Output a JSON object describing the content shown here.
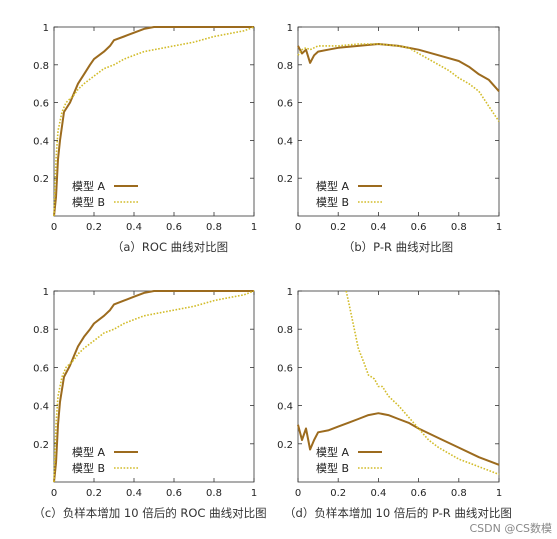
{
  "colors": {
    "model_a": "#9c6b1e",
    "model_b": "#d2bc2a",
    "axis": "#333333"
  },
  "chart_data": [
    {
      "type": "line",
      "caption": "（a）ROC 曲线对比图",
      "xlim": [
        0,
        1
      ],
      "ylim": [
        0,
        1
      ],
      "xticks": [
        "0",
        "0.2",
        "0.4",
        "0.6",
        "0.8",
        "1"
      ],
      "yticks": [
        "0.2",
        "0.4",
        "0.6",
        "0.8",
        "1"
      ],
      "legend": "bottom-left",
      "series": [
        {
          "name": "模型 A",
          "style": "solid",
          "x": [
            0.0,
            0.01,
            0.02,
            0.03,
            0.05,
            0.08,
            0.1,
            0.12,
            0.15,
            0.18,
            0.2,
            0.25,
            0.28,
            0.3,
            0.35,
            0.4,
            0.45,
            0.5,
            0.6,
            0.7,
            0.8,
            0.9,
            1.0
          ],
          "y": [
            0.0,
            0.1,
            0.3,
            0.4,
            0.55,
            0.6,
            0.65,
            0.7,
            0.75,
            0.8,
            0.83,
            0.87,
            0.9,
            0.93,
            0.95,
            0.97,
            0.99,
            1.0,
            1.0,
            1.0,
            1.0,
            1.0,
            1.0
          ]
        },
        {
          "name": "模型 B",
          "style": "dotted",
          "x": [
            0.0,
            0.01,
            0.02,
            0.04,
            0.06,
            0.1,
            0.12,
            0.15,
            0.2,
            0.25,
            0.3,
            0.35,
            0.4,
            0.45,
            0.5,
            0.6,
            0.7,
            0.8,
            0.85,
            0.9,
            0.95,
            1.0
          ],
          "y": [
            0.0,
            0.3,
            0.45,
            0.55,
            0.6,
            0.64,
            0.67,
            0.7,
            0.74,
            0.78,
            0.8,
            0.83,
            0.85,
            0.87,
            0.88,
            0.9,
            0.92,
            0.95,
            0.96,
            0.97,
            0.98,
            1.0
          ]
        }
      ]
    },
    {
      "type": "line",
      "caption": "（b）P-R 曲线对比图",
      "xlim": [
        0,
        1
      ],
      "ylim": [
        0,
        1
      ],
      "xticks": [
        "0",
        "0.2",
        "0.4",
        "0.6",
        "0.8",
        "1"
      ],
      "yticks": [
        "0.2",
        "0.4",
        "0.6",
        "0.8",
        "1"
      ],
      "legend": "bottom-left",
      "series": [
        {
          "name": "模型 A",
          "style": "solid",
          "x": [
            0.0,
            0.02,
            0.04,
            0.06,
            0.08,
            0.1,
            0.15,
            0.2,
            0.3,
            0.4,
            0.5,
            0.6,
            0.7,
            0.8,
            0.85,
            0.9,
            0.95,
            1.0
          ],
          "y": [
            0.9,
            0.86,
            0.88,
            0.81,
            0.85,
            0.87,
            0.88,
            0.89,
            0.9,
            0.91,
            0.9,
            0.88,
            0.85,
            0.82,
            0.79,
            0.75,
            0.72,
            0.66
          ]
        },
        {
          "name": "模型 B",
          "style": "dotted",
          "x": [
            0.0,
            0.02,
            0.04,
            0.06,
            0.08,
            0.1,
            0.15,
            0.2,
            0.3,
            0.4,
            0.5,
            0.55,
            0.6,
            0.65,
            0.7,
            0.75,
            0.8,
            0.85,
            0.9,
            0.95,
            1.0
          ],
          "y": [
            0.85,
            0.88,
            0.89,
            0.88,
            0.89,
            0.9,
            0.9,
            0.9,
            0.91,
            0.91,
            0.9,
            0.89,
            0.86,
            0.83,
            0.8,
            0.77,
            0.73,
            0.7,
            0.66,
            0.58,
            0.5
          ]
        }
      ]
    },
    {
      "type": "line",
      "caption": "（c）负样本增加 10 倍后的 ROC 曲线对比图",
      "xlim": [
        0,
        1
      ],
      "ylim": [
        0,
        1
      ],
      "xticks": [
        "0",
        "0.2",
        "0.4",
        "0.6",
        "0.8",
        "1"
      ],
      "yticks": [
        "0.2",
        "0.4",
        "0.6",
        "0.8",
        "1"
      ],
      "legend": "bottom-left",
      "series": [
        {
          "name": "模型 A",
          "style": "solid",
          "x": [
            0.0,
            0.01,
            0.02,
            0.03,
            0.05,
            0.08,
            0.1,
            0.12,
            0.15,
            0.18,
            0.2,
            0.25,
            0.28,
            0.3,
            0.35,
            0.4,
            0.45,
            0.5,
            0.6,
            0.7,
            0.8,
            0.9,
            1.0
          ],
          "y": [
            0.0,
            0.1,
            0.3,
            0.42,
            0.55,
            0.61,
            0.66,
            0.71,
            0.76,
            0.8,
            0.83,
            0.87,
            0.9,
            0.93,
            0.95,
            0.97,
            0.99,
            1.0,
            1.0,
            1.0,
            1.0,
            1.0,
            1.0
          ]
        },
        {
          "name": "模型 B",
          "style": "dotted",
          "x": [
            0.0,
            0.01,
            0.02,
            0.04,
            0.06,
            0.1,
            0.12,
            0.15,
            0.2,
            0.25,
            0.3,
            0.35,
            0.4,
            0.45,
            0.5,
            0.6,
            0.7,
            0.8,
            0.85,
            0.9,
            0.95,
            1.0
          ],
          "y": [
            0.0,
            0.3,
            0.45,
            0.55,
            0.6,
            0.64,
            0.67,
            0.7,
            0.74,
            0.78,
            0.8,
            0.83,
            0.85,
            0.87,
            0.88,
            0.9,
            0.92,
            0.95,
            0.96,
            0.97,
            0.98,
            1.0
          ]
        }
      ]
    },
    {
      "type": "line",
      "caption": "（d）负样本增加 10 倍后的 P-R 曲线对比图",
      "xlim": [
        0,
        1
      ],
      "ylim": [
        0,
        1
      ],
      "xticks": [
        "0",
        "0.2",
        "0.4",
        "0.6",
        "0.8",
        "1"
      ],
      "yticks": [
        "0.2",
        "0.4",
        "0.6",
        "0.8",
        "1"
      ],
      "legend": "bottom-left",
      "series": [
        {
          "name": "模型 A",
          "style": "solid",
          "x": [
            0.0,
            0.02,
            0.04,
            0.06,
            0.08,
            0.1,
            0.15,
            0.2,
            0.25,
            0.3,
            0.35,
            0.4,
            0.45,
            0.5,
            0.55,
            0.6,
            0.7,
            0.8,
            0.9,
            1.0
          ],
          "y": [
            0.3,
            0.22,
            0.28,
            0.17,
            0.22,
            0.26,
            0.27,
            0.29,
            0.31,
            0.33,
            0.35,
            0.36,
            0.35,
            0.33,
            0.31,
            0.28,
            0.23,
            0.18,
            0.13,
            0.09
          ]
        },
        {
          "name": "模型 B",
          "style": "dotted",
          "x": [
            0.24,
            0.25,
            0.27,
            0.3,
            0.33,
            0.35,
            0.38,
            0.4,
            0.42,
            0.45,
            0.5,
            0.55,
            0.6,
            0.65,
            0.7,
            0.75,
            0.8,
            0.85,
            0.9,
            0.95,
            1.0
          ],
          "y": [
            1.0,
            0.95,
            0.85,
            0.7,
            0.62,
            0.56,
            0.54,
            0.5,
            0.5,
            0.45,
            0.4,
            0.34,
            0.28,
            0.22,
            0.18,
            0.15,
            0.12,
            0.1,
            0.08,
            0.06,
            0.04
          ]
        }
      ]
    }
  ],
  "watermark": "CSDN @CS数模"
}
